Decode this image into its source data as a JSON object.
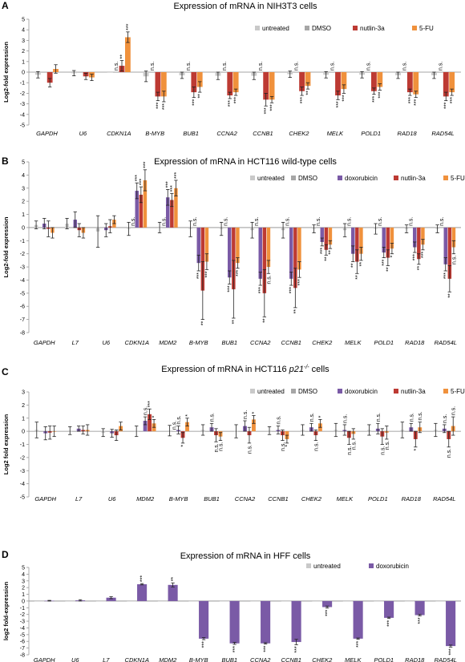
{
  "colors": {
    "untreated": "#c9c9c9",
    "DMSO": "#a6a6a6",
    "doxorubicin": "#7a5aa6",
    "nutlin-3a": "#bd3a33",
    "5-FU": "#f0913c"
  },
  "chart_data": [
    {
      "panel": "A",
      "type": "bar",
      "title": "Expression of mRNA in NIH3T3 cells",
      "ylabel": "Log2-fold expression",
      "ylim": [
        -5,
        5
      ],
      "yticks": [
        "-5",
        "-4",
        "-3",
        "-2",
        "-1",
        "0",
        "1",
        "2",
        "3",
        "4",
        "5"
      ],
      "categories": [
        "GAPDH",
        "U6",
        "CDKN1A",
        "B-MYB",
        "BUB1",
        "CCNA2",
        "CCNB1",
        "CHEK2",
        "MELK",
        "POLD1",
        "RAD18",
        "RAD54L"
      ],
      "legend": [
        "untreated",
        "DMSO",
        "nutlin-3a",
        "5-FU"
      ],
      "series": [
        {
          "name": "untreated",
          "values": [
            -0.25,
            -0.1,
            0,
            -0.4,
            -0.3,
            -0.35,
            -0.35,
            -0.2,
            -0.25,
            -0.25,
            -0.3,
            -0.3
          ],
          "err": [
            0.3,
            0.25,
            0,
            0.5,
            0.3,
            0.35,
            0.35,
            0.3,
            0.3,
            0.3,
            0.3,
            0.3
          ]
        },
        {
          "name": "DMSO",
          "values": [
            0,
            0,
            0,
            0,
            0,
            0,
            0,
            0,
            0,
            0,
            0,
            0
          ],
          "err": [
            0,
            0,
            0,
            0,
            0,
            0,
            0,
            0,
            0,
            0,
            0,
            0
          ]
        },
        {
          "name": "nutlin-3a",
          "values": [
            -1.0,
            -0.4,
            0.6,
            -2.3,
            -1.9,
            -2.2,
            -2.6,
            -1.8,
            -2.2,
            -1.8,
            -1.9,
            -2.3
          ],
          "err": [
            0.4,
            0.3,
            0.5,
            0.4,
            0.5,
            0.3,
            0.6,
            0.4,
            0.4,
            0.3,
            0.3,
            0.4
          ]
        },
        {
          "name": "5-FU",
          "values": [
            0.3,
            -0.5,
            3.3,
            -2.3,
            -1.4,
            -1.9,
            -2.6,
            -1.3,
            -1.6,
            -1.4,
            -2.1,
            -1.9
          ],
          "err": [
            0.4,
            0.3,
            0.5,
            0.5,
            0.5,
            0.3,
            0.3,
            0.3,
            0.4,
            0.3,
            0.3,
            0.3
          ]
        }
      ],
      "annotations": [
        {
          "cat": 2,
          "text": "n.s."
        },
        {
          "cat": 2,
          "text": "**"
        },
        {
          "cat": 2,
          "text": "***"
        },
        {
          "cat": 3,
          "text": "n.s."
        },
        {
          "cat": 3,
          "text": "***"
        },
        {
          "cat": 3,
          "text": "***"
        },
        {
          "cat": 4,
          "text": "n.s."
        },
        {
          "cat": 4,
          "text": "***"
        },
        {
          "cat": 4,
          "text": "**"
        },
        {
          "cat": 5,
          "text": "n.s."
        },
        {
          "cat": 5,
          "text": "***"
        },
        {
          "cat": 5,
          "text": "***"
        },
        {
          "cat": 6,
          "text": "n.s."
        },
        {
          "cat": 6,
          "text": "***"
        },
        {
          "cat": 6,
          "text": "***"
        },
        {
          "cat": 7,
          "text": "n.s."
        },
        {
          "cat": 7,
          "text": "***"
        },
        {
          "cat": 7,
          "text": "**"
        },
        {
          "cat": 8,
          "text": "n.s."
        },
        {
          "cat": 8,
          "text": "***"
        },
        {
          "cat": 8,
          "text": "***"
        },
        {
          "cat": 9,
          "text": "n.s."
        },
        {
          "cat": 9,
          "text": "***"
        },
        {
          "cat": 9,
          "text": "***"
        },
        {
          "cat": 10,
          "text": "n.s."
        },
        {
          "cat": 10,
          "text": "***"
        },
        {
          "cat": 10,
          "text": "***"
        },
        {
          "cat": 11,
          "text": "n.s."
        },
        {
          "cat": 11,
          "text": "***"
        },
        {
          "cat": 11,
          "text": "***"
        }
      ]
    },
    {
      "panel": "B",
      "type": "bar",
      "title": "Expression of mRNA in HCT116 wild-type cells",
      "ylabel": "Log2-fold expression",
      "ylim": [
        -8,
        5
      ],
      "yticks": [
        "-8",
        "-7",
        "-6",
        "-5",
        "-4",
        "-3",
        "-2",
        "-1",
        "0",
        "1",
        "2",
        "3",
        "4",
        "5"
      ],
      "categories": [
        "GAPDH",
        "L7",
        "U6",
        "CDKN1A",
        "MDM2",
        "B-MYB",
        "BUB1",
        "CCNA2",
        "CCNB1",
        "CHEK2",
        "MELK",
        "POLD1",
        "RAD18",
        "RAD54L"
      ],
      "legend": [
        "untreated",
        "DMSO",
        "doxorubicin",
        "nutlin-3a",
        "5-FU"
      ],
      "series": [
        {
          "name": "untreated",
          "values": [
            0.2,
            0.3,
            -0.3,
            -0.1,
            0,
            -0.1,
            -0.1,
            -0.2,
            -0.2,
            -0.1,
            -0.2,
            -0.1,
            -0.1,
            -0.1
          ],
          "err": [
            0.3,
            0.4,
            1.2,
            0.5,
            0.4,
            0.6,
            0.5,
            0.6,
            0.6,
            0.3,
            0.5,
            0.4,
            0.3,
            0.3
          ]
        },
        {
          "name": "DMSO",
          "values": [
            0,
            0,
            0,
            0,
            0,
            0,
            0,
            0,
            0,
            0,
            0,
            0,
            0,
            0
          ],
          "err": [
            0,
            0,
            0,
            0,
            0,
            0,
            0,
            0,
            0,
            0,
            0,
            0,
            0,
            0
          ]
        },
        {
          "name": "doxorubicin",
          "values": [
            0.3,
            0.6,
            -0.2,
            2.8,
            2.3,
            -2.7,
            -3.8,
            -3.9,
            -3.9,
            -1.1,
            -2.0,
            -1.9,
            -1.5,
            -2.8
          ],
          "err": [
            0.4,
            0.6,
            0.5,
            0.6,
            0.6,
            0.6,
            0.5,
            0.5,
            0.5,
            0.3,
            0.6,
            0.4,
            0.4,
            0.5
          ]
        },
        {
          "name": "nutlin-3a",
          "values": [
            -0.1,
            -0.2,
            0.1,
            2.5,
            2.1,
            -4.8,
            -4.7,
            -5.0,
            -4.6,
            -1.7,
            -2.6,
            -2.3,
            -2.4,
            -3.9
          ],
          "err": [
            0.6,
            0.5,
            0.5,
            0.6,
            0.5,
            2.2,
            2.2,
            1.8,
            1.5,
            0.4,
            0.9,
            0.6,
            0.4,
            1.0
          ]
        },
        {
          "name": "5-FU",
          "values": [
            -0.4,
            -0.4,
            0.6,
            3.6,
            3.0,
            -2.6,
            -2.7,
            -3.0,
            -3.2,
            -1.3,
            -2.0,
            -1.6,
            -1.3,
            -1.5
          ],
          "err": [
            0.4,
            0.4,
            0.3,
            0.8,
            0.6,
            0.6,
            0.4,
            0.5,
            0.6,
            0.3,
            0.5,
            0.4,
            0.4,
            0.5
          ]
        }
      ],
      "annotations": [
        {
          "cat": 3,
          "text": "n.s."
        },
        {
          "cat": 3,
          "text": "***"
        },
        {
          "cat": 3,
          "text": "***"
        },
        {
          "cat": 3,
          "text": "***"
        },
        {
          "cat": 4,
          "text": "n.s."
        },
        {
          "cat": 4,
          "text": "***"
        },
        {
          "cat": 4,
          "text": "***"
        },
        {
          "cat": 4,
          "text": "***"
        },
        {
          "cat": 5,
          "text": "n.s."
        },
        {
          "cat": 5,
          "text": "***"
        },
        {
          "cat": 5,
          "text": "**"
        },
        {
          "cat": 5,
          "text": "***"
        },
        {
          "cat": 6,
          "text": "n.s."
        },
        {
          "cat": 6,
          "text": "***"
        },
        {
          "cat": 6,
          "text": "**"
        },
        {
          "cat": 6,
          "text": "***"
        },
        {
          "cat": 7,
          "text": "n.s."
        },
        {
          "cat": 7,
          "text": "***"
        },
        {
          "cat": 7,
          "text": "**"
        },
        {
          "cat": 7,
          "text": "n.s."
        },
        {
          "cat": 8,
          "text": "n.s."
        },
        {
          "cat": 8,
          "text": "***"
        },
        {
          "cat": 8,
          "text": "**"
        },
        {
          "cat": 8,
          "text": "***"
        },
        {
          "cat": 9,
          "text": "n.s."
        },
        {
          "cat": 9,
          "text": "***"
        },
        {
          "cat": 9,
          "text": "**"
        },
        {
          "cat": 9,
          "text": "**"
        },
        {
          "cat": 10,
          "text": "n.s."
        },
        {
          "cat": 10,
          "text": "**"
        },
        {
          "cat": 10,
          "text": "**"
        },
        {
          "cat": 10,
          "text": "**"
        },
        {
          "cat": 11,
          "text": "n.s."
        },
        {
          "cat": 11,
          "text": "***"
        },
        {
          "cat": 11,
          "text": "**"
        },
        {
          "cat": 11,
          "text": "*"
        },
        {
          "cat": 12,
          "text": "n.s."
        },
        {
          "cat": 12,
          "text": "***"
        },
        {
          "cat": 12,
          "text": "**"
        },
        {
          "cat": 12,
          "text": "***"
        },
        {
          "cat": 13,
          "text": "n.s."
        },
        {
          "cat": 13,
          "text": "***"
        },
        {
          "cat": 13,
          "text": "**"
        },
        {
          "cat": 13,
          "text": "n.s."
        }
      ]
    },
    {
      "panel": "C",
      "type": "bar",
      "title": "Expression of mRNA in HCT116 p21-/- cells",
      "title_parts": [
        "Expression of mRNA in HCT116 ",
        "p21",
        "-/-",
        " cells"
      ],
      "ylabel": "Log2 fold expression",
      "ylim": [
        -5,
        3
      ],
      "yticks": [
        "-5",
        "-4",
        "-3",
        "-2",
        "-1",
        "0",
        "1",
        "2",
        "3"
      ],
      "categories": [
        "GAPDH",
        "L7",
        "U6",
        "MDM2",
        "B-MYB",
        "BUB1",
        "CCNA2",
        "CCNB1",
        "CHEK2",
        "MELK",
        "POLD1",
        "RAD18",
        "RAD54L"
      ],
      "legend": [
        "untreated",
        "DMSO",
        "doxorubicin",
        "nutlin-3a",
        "5-FU"
      ],
      "series": [
        {
          "name": "untreated",
          "values": [
            0.1,
            0.05,
            -0.1,
            0,
            0.05,
            0.1,
            0,
            0.05,
            0.1,
            0.1,
            0.1,
            0.1,
            0.1
          ],
          "err": [
            0.6,
            0.3,
            0.3,
            0.4,
            0.4,
            0.4,
            0.5,
            0.3,
            0.4,
            0.5,
            0.4,
            0.6,
            0.5
          ]
        },
        {
          "name": "DMSO",
          "values": [
            0,
            0,
            0,
            0,
            0,
            0,
            0,
            0,
            0,
            0,
            0,
            0,
            0
          ],
          "err": [
            0,
            0,
            0,
            0,
            0,
            0,
            0,
            0,
            0,
            0,
            0,
            0,
            0
          ]
        },
        {
          "name": "doxorubicin",
          "values": [
            -0.15,
            0.2,
            -0.15,
            0.8,
            0.1,
            0.3,
            0.4,
            0.1,
            0.3,
            0.1,
            0.2,
            0.3,
            0.2
          ],
          "err": [
            0.5,
            0.2,
            0.3,
            0.3,
            0.3,
            0.3,
            0.4,
            0.3,
            0.3,
            0.4,
            0.4,
            0.3,
            0.3
          ]
        },
        {
          "name": "nutlin-3a",
          "values": [
            -0.1,
            0.1,
            -0.3,
            1.3,
            -0.5,
            -0.3,
            -0.3,
            -0.3,
            -0.3,
            -0.5,
            -0.4,
            -0.6,
            -0.6
          ],
          "err": [
            0.5,
            0.3,
            0.4,
            0.4,
            0.4,
            0.5,
            0.6,
            0.4,
            0.4,
            0.5,
            0.6,
            0.6,
            0.6
          ]
        },
        {
          "name": "5-FU",
          "values": [
            0,
            0.1,
            0.4,
            0.6,
            0.7,
            -0.4,
            0.9,
            -0.6,
            0.6,
            -0.2,
            -0.1,
            0.3,
            0.4
          ],
          "err": [
            0.4,
            0.4,
            0.3,
            0.3,
            0.3,
            0.3,
            0.3,
            0.3,
            0.3,
            0.4,
            0.5,
            0.4,
            0.7
          ]
        }
      ],
      "annotations": [
        {
          "cat": 3,
          "text": "n.s."
        },
        {
          "cat": 3,
          "text": "***"
        },
        {
          "cat": 3,
          "text": "*"
        },
        {
          "cat": 4,
          "text": "n.s."
        },
        {
          "cat": 4,
          "text": "n.s."
        },
        {
          "cat": 4,
          "text": "*"
        },
        {
          "cat": 4,
          "text": "*"
        },
        {
          "cat": 5,
          "text": "n.s."
        },
        {
          "cat": 5,
          "text": "n.s."
        },
        {
          "cat": 5,
          "text": "n.s."
        },
        {
          "cat": 6,
          "text": "n.s."
        },
        {
          "cat": 6,
          "text": "n.s."
        },
        {
          "cat": 6,
          "text": "*"
        },
        {
          "cat": 7,
          "text": "n.s."
        },
        {
          "cat": 7,
          "text": "n.s."
        },
        {
          "cat": 7,
          "text": "*"
        },
        {
          "cat": 8,
          "text": "n.s."
        },
        {
          "cat": 8,
          "text": "n.s."
        },
        {
          "cat": 8,
          "text": "*"
        },
        {
          "cat": 9,
          "text": "n.s."
        },
        {
          "cat": 9,
          "text": "n.s."
        },
        {
          "cat": 9,
          "text": "n.s."
        },
        {
          "cat": 10,
          "text": "n.s."
        },
        {
          "cat": 10,
          "text": "n.s."
        },
        {
          "cat": 10,
          "text": "n.s."
        },
        {
          "cat": 11,
          "text": "n.s."
        },
        {
          "cat": 11,
          "text": "*"
        },
        {
          "cat": 11,
          "text": "n.s."
        },
        {
          "cat": 12,
          "text": "n.s."
        },
        {
          "cat": 12,
          "text": "n.s."
        },
        {
          "cat": 12,
          "text": "n.s."
        }
      ]
    },
    {
      "panel": "D",
      "type": "bar",
      "title": "Expression of mRNA in HFF cells",
      "ylabel": "log2 fold-expression",
      "ylim": [
        -8,
        5
      ],
      "yticks": [
        "-8",
        "-7",
        "-6",
        "-5",
        "-4",
        "-3",
        "-2",
        "-1",
        "0",
        "1",
        "2",
        "3",
        "4",
        "5"
      ],
      "categories": [
        "GAPDH",
        "U6",
        "L7",
        "CDKN1A",
        "MDM2",
        "B-MYB",
        "BUB1",
        "CCNA2",
        "CCNB1",
        "CHEK2",
        "MELK",
        "POLD1",
        "RAD18",
        "RAD54L"
      ],
      "legend": [
        "untreated",
        "doxorubicin"
      ],
      "series": [
        {
          "name": "untreated",
          "values": [
            0,
            0,
            0,
            0,
            0,
            0,
            0,
            0,
            0,
            0,
            0,
            0,
            0,
            0
          ],
          "err": [
            0,
            0,
            0,
            0,
            0,
            0,
            0,
            0,
            0,
            0,
            0,
            0,
            0,
            0
          ]
        },
        {
          "name": "doxorubicin",
          "values": [
            0.05,
            0.1,
            0.5,
            2.5,
            2.4,
            -5.6,
            -6.3,
            -6.3,
            -6.1,
            -0.9,
            -5.6,
            -2.5,
            -2.1,
            -6.7
          ],
          "err": [
            0.05,
            0.1,
            0.15,
            0.1,
            0.3,
            0.15,
            0.15,
            0.1,
            0.4,
            0.15,
            0.1,
            0.1,
            0.1,
            0.15
          ]
        }
      ],
      "annotations": [
        {
          "cat": 3,
          "text": "***"
        },
        {
          "cat": 4,
          "text": "**"
        },
        {
          "cat": 5,
          "text": "***"
        },
        {
          "cat": 6,
          "text": "***"
        },
        {
          "cat": 7,
          "text": "***"
        },
        {
          "cat": 8,
          "text": "***"
        },
        {
          "cat": 9,
          "text": "***"
        },
        {
          "cat": 10,
          "text": "***"
        },
        {
          "cat": 11,
          "text": "***"
        },
        {
          "cat": 12,
          "text": "***"
        },
        {
          "cat": 13,
          "text": "***"
        }
      ]
    }
  ]
}
